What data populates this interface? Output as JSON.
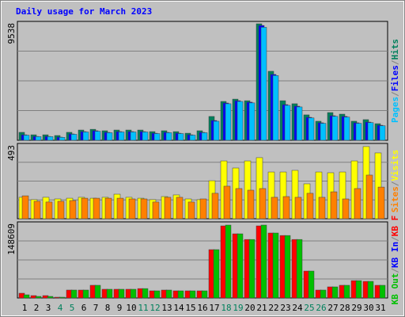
{
  "chart_data": {
    "type": "bar",
    "title": "Daily usage for March 2023",
    "categories": [
      "1",
      "2",
      "3",
      "4",
      "5",
      "6",
      "7",
      "8",
      "9",
      "10",
      "11",
      "12",
      "13",
      "14",
      "15",
      "16",
      "17",
      "18",
      "19",
      "20",
      "21",
      "22",
      "23",
      "24",
      "25",
      "26",
      "27",
      "28",
      "29",
      "30",
      "31"
    ],
    "category_colors": [
      "#000000",
      "#000000",
      "#000000",
      "#00805c",
      "#00805c",
      "#000000",
      "#000000",
      "#000000",
      "#000000",
      "#000000",
      "#00805c",
      "#00805c",
      "#000000",
      "#000000",
      "#000000",
      "#000000",
      "#000000",
      "#00805c",
      "#00805c",
      "#000000",
      "#000000",
      "#000000",
      "#000000",
      "#000000",
      "#00805c",
      "#00805c",
      "#000000",
      "#000000",
      "#000000",
      "#000000",
      "#000000"
    ],
    "panels": [
      {
        "ylim": [
          0,
          9538
        ],
        "yticks": [
          9538
        ],
        "series": [
          {
            "name": "Hits",
            "color": "#00805c",
            "values": [
              650,
              450,
              450,
              390,
              650,
              840,
              900,
              780,
              840,
              840,
              840,
              710,
              780,
              710,
              580,
              780,
              1950,
              3180,
              3370,
              3240,
              9538,
              5650,
              3240,
              2990,
              2080,
              1560,
              2270,
              2140,
              1560,
              1690,
              1360
            ]
          },
          {
            "name": "Files",
            "color": "#0000ff",
            "values": [
              450,
              320,
              320,
              260,
              520,
              710,
              780,
              650,
              710,
              710,
              710,
              580,
              650,
              580,
              450,
              650,
              1620,
              3050,
              3240,
              3120,
              9400,
              5390,
              2920,
              2790,
              1880,
              1430,
              2010,
              1950,
              1430,
              1490,
              1230
            ]
          },
          {
            "name": "Pages",
            "color": "#00c0ff",
            "values": [
              420,
              300,
              300,
              240,
              490,
              680,
              740,
              620,
              680,
              680,
              680,
              550,
              620,
              550,
              420,
              620,
              1560,
              2990,
              3180,
              3060,
              9250,
              5300,
              2860,
              2730,
              1830,
              1390,
              1960,
              1900,
              1390,
              1450,
              1190
            ]
          }
        ]
      },
      {
        "ylim": [
          0,
          493
        ],
        "yticks": [
          493
        ],
        "series": [
          {
            "name": "Visits",
            "color": "#ffff00",
            "values": [
              145,
              129,
              145,
              134,
              139,
              145,
              139,
              145,
              166,
              145,
              139,
              129,
              150,
              161,
              134,
              129,
              257,
              391,
              343,
              391,
              413,
              316,
              316,
              327,
              236,
              316,
              311,
              316,
              391,
              488,
              445
            ]
          },
          {
            "name": "Sites",
            "color": "#ff8000",
            "values": [
              155,
              118,
              113,
              118,
              123,
              139,
              139,
              139,
              139,
              134,
              134,
              113,
              145,
              145,
              113,
              134,
              172,
              220,
              204,
              193,
              204,
              145,
              150,
              145,
              172,
              145,
              182,
              134,
              204,
              295,
              214
            ]
          }
        ]
      },
      {
        "ylim": [
          0,
          148609
        ],
        "yticks": [
          148609
        ],
        "series": [
          {
            "name": "KB F",
            "color": "#ff0000",
            "values": [
              9600,
              4800,
              4800,
              1600,
              16000,
              16000,
              25600,
              17600,
              17600,
              17600,
              19000,
              14400,
              16000,
              14400,
              14400,
              14400,
              97500,
              145400,
              129400,
              118000,
              145400,
              131000,
              126000,
              118000,
              54300,
              16000,
              22400,
              25600,
              35000,
              33500,
              25600
            ]
          },
          {
            "name": "KB In",
            "color": "#0000ff",
            "values": [
              null,
              null,
              null,
              null,
              null,
              null,
              null,
              null,
              null,
              null,
              null,
              null,
              null,
              null,
              null,
              null,
              null,
              null,
              null,
              null,
              null,
              null,
              null,
              null,
              null,
              null,
              null,
              null,
              null,
              null,
              null
            ]
          },
          {
            "name": "KB Out",
            "color": "#00c000",
            "values": [
              6400,
              3200,
              3200,
              1600,
              16000,
              16000,
              25600,
              17600,
              17600,
              17600,
              19000,
              14400,
              16000,
              14400,
              14400,
              14400,
              97500,
              147000,
              129400,
              118000,
              147000,
              131000,
              126000,
              118000,
              54300,
              16000,
              22400,
              25600,
              35000,
              33500,
              25600
            ]
          }
        ]
      }
    ]
  }
}
